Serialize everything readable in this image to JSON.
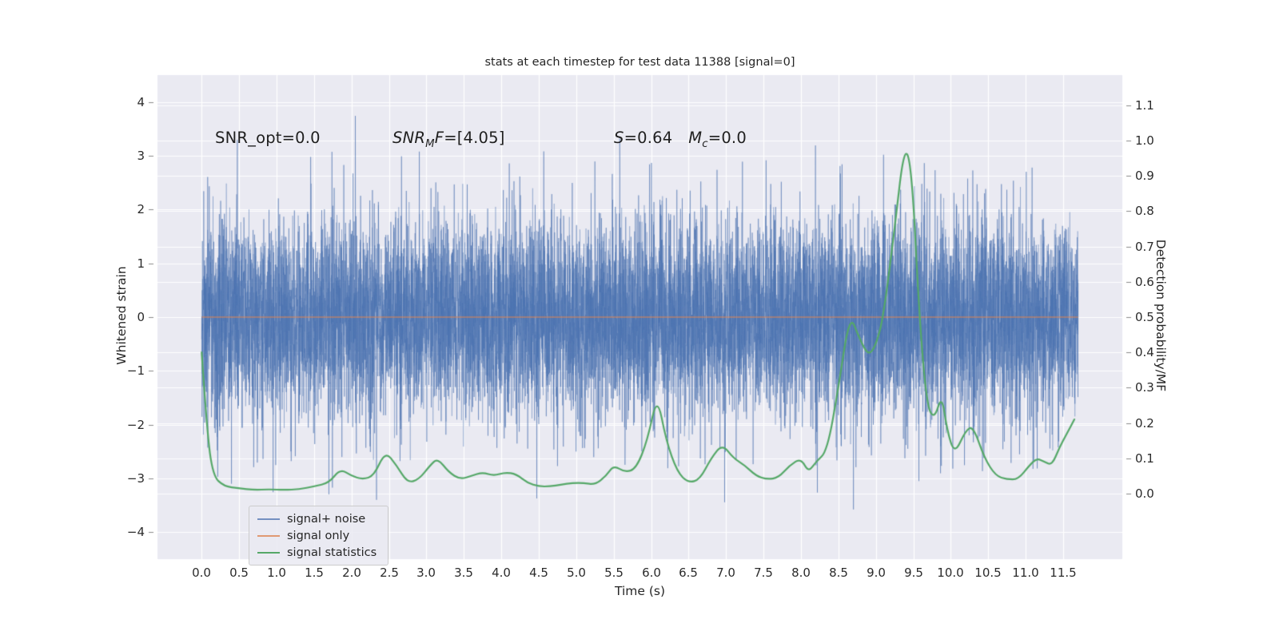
{
  "figure": {
    "title": "stats at each timestep for test data 11388 [signal=0]",
    "background": "#ffffff",
    "axes_background": "#eaeaf2",
    "grid_color": "#ffffff",
    "text_color": "#262626"
  },
  "axes": {
    "x": {
      "label": "Time (s)",
      "lim": [
        -0.59,
        12.29
      ],
      "tick_values": [
        0,
        0.5,
        1,
        1.5,
        2,
        2.5,
        3,
        3.5,
        4,
        4.5,
        5,
        5.5,
        6,
        6.5,
        7,
        7.5,
        8,
        8.5,
        9,
        9.5,
        10,
        10.5,
        11,
        11.5
      ],
      "tick_labels": [
        "0.0",
        "0.5",
        "1.0",
        "1.5",
        "2.0",
        "2.5",
        "3.0",
        "3.5",
        "4.0",
        "4.5",
        "5.0",
        "5.5",
        "6.0",
        "6.5",
        "7.0",
        "7.5",
        "8.0",
        "8.5",
        "9.0",
        "9.5",
        "10.0",
        "10.5",
        "11.0",
        "11.5"
      ]
    },
    "y_left": {
      "label": "Whitened strain",
      "lim": [
        -4.5,
        4.5
      ],
      "tick_values": [
        -4,
        -3,
        -2,
        -1,
        0,
        1,
        2,
        3,
        4
      ],
      "tick_labels": [
        "−4",
        "−3",
        "−2",
        "−1",
        "0",
        "1",
        "2",
        "3",
        "4"
      ]
    },
    "y_right": {
      "label": "Detection probability/MF",
      "lim": [
        -0.186,
        1.186
      ],
      "tick_values": [
        0,
        0.1,
        0.2,
        0.3,
        0.4,
        0.5,
        0.6,
        0.7,
        0.8,
        0.9,
        1.0,
        1.1
      ],
      "tick_labels": [
        "0.0",
        "0.1",
        "0.2",
        "0.3",
        "0.4",
        "0.5",
        "0.6",
        "0.7",
        "0.8",
        "0.9",
        "1.0",
        "1.1"
      ]
    }
  },
  "legend": {
    "items": [
      {
        "label": "signal+ noise",
        "color": "rgba(76,114,176,0.75)"
      },
      {
        "label": "signal only",
        "color": "rgba(221,132,82,0.8)"
      },
      {
        "label": "signal statistics",
        "color": "#55a868"
      }
    ]
  },
  "chart_data": {
    "type": "line",
    "title": "stats at each timestep for test data 11388 [signal=0]",
    "xlabel": "Time (s)",
    "ylabel_left": "Whitened strain",
    "ylabel_right": "Detection probability/MF",
    "xlim": [
      -0.59,
      12.29
    ],
    "ylim_left": [
      -4.5,
      4.5
    ],
    "ylim_right": [
      -0.186,
      1.186
    ],
    "grid": true,
    "legend_position": "lower left",
    "annotations": [
      {
        "name": "snr-opt",
        "x": 0.18,
        "y_top": 3.5,
        "parts": [
          {
            "text": "SNR_opt=0.0"
          }
        ]
      },
      {
        "name": "snr-mf",
        "x": 2.55,
        "y_top": 3.5,
        "parts": [
          {
            "text": "SNR",
            "italic": true
          },
          {
            "text": "M",
            "italic": true,
            "sub": true
          },
          {
            "text": "F",
            "italic": true
          },
          {
            "text": "=[4.05]"
          }
        ]
      },
      {
        "name": "s-mc",
        "x": 5.5,
        "y_top": 3.5,
        "parts": [
          {
            "text": "S",
            "italic": true
          },
          {
            "text": "=0.64"
          },
          {
            "text": "  "
          },
          {
            "text": "M",
            "italic": true
          },
          {
            "text": "c",
            "italic": true,
            "sub": true
          },
          {
            "text": "=0.0"
          }
        ]
      }
    ],
    "series": [
      {
        "name": "signal+ noise",
        "axis": "left",
        "style": "noise",
        "color": "#4c72b0",
        "alpha": 0.5,
        "mean": 0.0,
        "std": 1.0,
        "x_start": 0.0,
        "x_end": 11.7,
        "samples": 6000,
        "seed": 11388,
        "observed_peak_max": 4.07,
        "observed_peak_min": -3.5
      },
      {
        "name": "signal only",
        "axis": "left",
        "style": "constant",
        "color": "#dd8452",
        "alpha": 0.7,
        "value": 0.0,
        "x_start": 0.0,
        "x_end": 11.7
      },
      {
        "name": "signal statistics",
        "axis": "right",
        "style": "line",
        "color": "#55a868",
        "linewidth": 2.2,
        "x": [
          0.0,
          0.07,
          0.15,
          0.3,
          0.5,
          0.7,
          0.9,
          1.1,
          1.3,
          1.5,
          1.7,
          1.85,
          2.0,
          2.15,
          2.3,
          2.45,
          2.6,
          2.75,
          2.9,
          3.05,
          3.15,
          3.3,
          3.45,
          3.6,
          3.75,
          3.9,
          4.05,
          4.2,
          4.35,
          4.5,
          4.65,
          4.8,
          4.95,
          5.1,
          5.25,
          5.4,
          5.5,
          5.65,
          5.8,
          5.95,
          6.08,
          6.2,
          6.35,
          6.5,
          6.65,
          6.8,
          6.95,
          7.1,
          7.25,
          7.4,
          7.55,
          7.7,
          7.85,
          8.0,
          8.1,
          8.2,
          8.35,
          8.5,
          8.65,
          8.78,
          8.9,
          9.0,
          9.1,
          9.25,
          9.38,
          9.48,
          9.58,
          9.68,
          9.78,
          9.88,
          9.95,
          10.05,
          10.2,
          10.3,
          10.45,
          10.6,
          10.75,
          10.9,
          11.05,
          11.15,
          11.25,
          11.35,
          11.45,
          11.55,
          11.65
        ],
        "y": [
          0.4,
          0.18,
          0.05,
          0.02,
          0.015,
          0.01,
          0.012,
          0.01,
          0.012,
          0.02,
          0.03,
          0.07,
          0.05,
          0.04,
          0.05,
          0.12,
          0.08,
          0.03,
          0.04,
          0.08,
          0.1,
          0.06,
          0.04,
          0.05,
          0.06,
          0.05,
          0.06,
          0.055,
          0.03,
          0.02,
          0.02,
          0.025,
          0.03,
          0.03,
          0.025,
          0.05,
          0.08,
          0.06,
          0.07,
          0.15,
          0.28,
          0.15,
          0.06,
          0.03,
          0.04,
          0.1,
          0.14,
          0.1,
          0.08,
          0.05,
          0.04,
          0.045,
          0.08,
          0.1,
          0.06,
          0.09,
          0.12,
          0.3,
          0.51,
          0.44,
          0.39,
          0.42,
          0.5,
          0.75,
          0.99,
          0.92,
          0.5,
          0.25,
          0.21,
          0.28,
          0.18,
          0.11,
          0.18,
          0.19,
          0.1,
          0.05,
          0.04,
          0.04,
          0.08,
          0.1,
          0.09,
          0.08,
          0.13,
          0.17,
          0.21
        ]
      }
    ]
  }
}
